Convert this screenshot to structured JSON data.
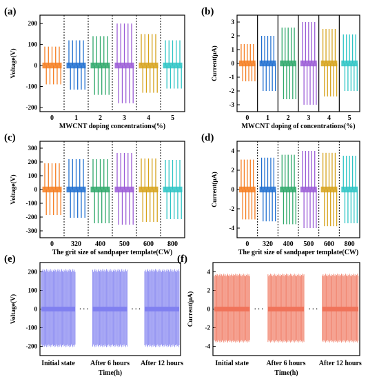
{
  "panels": [
    {
      "id": "a",
      "label": "(a)",
      "type": "signal_groups",
      "xlabel": "MWCNT doping concentrations(%)",
      "ylabel": "Voltage(V)",
      "ylim": [
        -220,
        240
      ],
      "yticks": [
        -200,
        -100,
        0,
        100,
        200
      ],
      "categories": [
        "0",
        "1",
        "2",
        "3",
        "4",
        "5"
      ],
      "pos_peaks": [
        90,
        120,
        140,
        200,
        150,
        120
      ],
      "neg_peaks": [
        -90,
        -115,
        -140,
        -180,
        -130,
        -110
      ],
      "colors": [
        "#f57c1f",
        "#1f6fd0",
        "#2ea86a",
        "#9a5bd6",
        "#d6a21a",
        "#2cc4c4"
      ],
      "separator": "dotted"
    },
    {
      "id": "b",
      "label": "(b)",
      "type": "signal_groups",
      "xlabel": "MWCNT doping of concentrations(%)",
      "ylabel": "Current(μA)",
      "ylim": [
        -3.5,
        3.5
      ],
      "yticks": [
        -3,
        -2,
        -1,
        0,
        1,
        2,
        3
      ],
      "categories": [
        "0",
        "1",
        "2",
        "3",
        "4",
        "5"
      ],
      "pos_peaks": [
        1.4,
        2.0,
        2.6,
        3.0,
        2.5,
        2.1
      ],
      "neg_peaks": [
        -1.3,
        -2.0,
        -2.6,
        -3.0,
        -2.4,
        -2.0
      ],
      "colors": [
        "#f57c1f",
        "#1f6fd0",
        "#2ea86a",
        "#9a5bd6",
        "#d6a21a",
        "#2cc4c4"
      ],
      "separator": "solid"
    },
    {
      "id": "c",
      "label": "(c)",
      "type": "signal_groups",
      "xlabel": "The grit size of sandpaper template(CW)",
      "ylabel": "Voltage(V)",
      "ylim": [
        -350,
        350
      ],
      "yticks": [
        -300,
        -200,
        -100,
        0,
        100,
        200,
        300
      ],
      "categories": [
        "0",
        "320",
        "400",
        "500",
        "600",
        "800"
      ],
      "pos_peaks": [
        190,
        220,
        220,
        265,
        225,
        215
      ],
      "neg_peaks": [
        -185,
        -205,
        -245,
        -255,
        -235,
        -215
      ],
      "colors": [
        "#f57c1f",
        "#1f6fd0",
        "#2ea86a",
        "#9a5bd6",
        "#d6a21a",
        "#2cc4c4"
      ],
      "separator": "dotted"
    },
    {
      "id": "d",
      "label": "(d)",
      "type": "signal_groups",
      "xlabel": "The grit size of sandpaper template(CW)",
      "ylabel": "Current(μA)",
      "ylim": [
        -5,
        5
      ],
      "yticks": [
        -4,
        -2,
        0,
        2,
        4
      ],
      "categories": [
        "0",
        "320",
        "400",
        "500",
        "600",
        "800"
      ],
      "pos_peaks": [
        3.1,
        3.3,
        3.6,
        4.0,
        3.8,
        3.5
      ],
      "neg_peaks": [
        -3.1,
        -3.3,
        -3.6,
        -4.0,
        -3.8,
        -3.5
      ],
      "colors": [
        "#f57c1f",
        "#1f6fd0",
        "#2ea86a",
        "#9a5bd6",
        "#d6a21a",
        "#2cc4c4"
      ],
      "separator": "dotted"
    },
    {
      "id": "e",
      "label": "(e)",
      "type": "stability",
      "xlabel": "Time(h)",
      "ylabel": "Voltage(V)",
      "ylim": [
        -250,
        250
      ],
      "yticks": [
        -200,
        -100,
        0,
        100,
        200
      ],
      "categories": [
        "Initial state",
        "After 6 hours",
        "After 12 hours"
      ],
      "ellipsis": "· · ·",
      "pos_peak": 215,
      "neg_peak": -205,
      "color": "#8080f0"
    },
    {
      "id": "f",
      "label": "(f)",
      "type": "stability",
      "xlabel": "Time(h)",
      "ylabel": "Current(μA)",
      "ylim": [
        -5,
        5
      ],
      "yticks": [
        -4,
        -2,
        0,
        2,
        4
      ],
      "categories": [
        "Initial state",
        "After 6 hours",
        "After 12 hours"
      ],
      "ellipsis": "· · ·",
      "pos_peak": 3.8,
      "neg_peak": -3.6,
      "color": "#f0735a"
    }
  ]
}
